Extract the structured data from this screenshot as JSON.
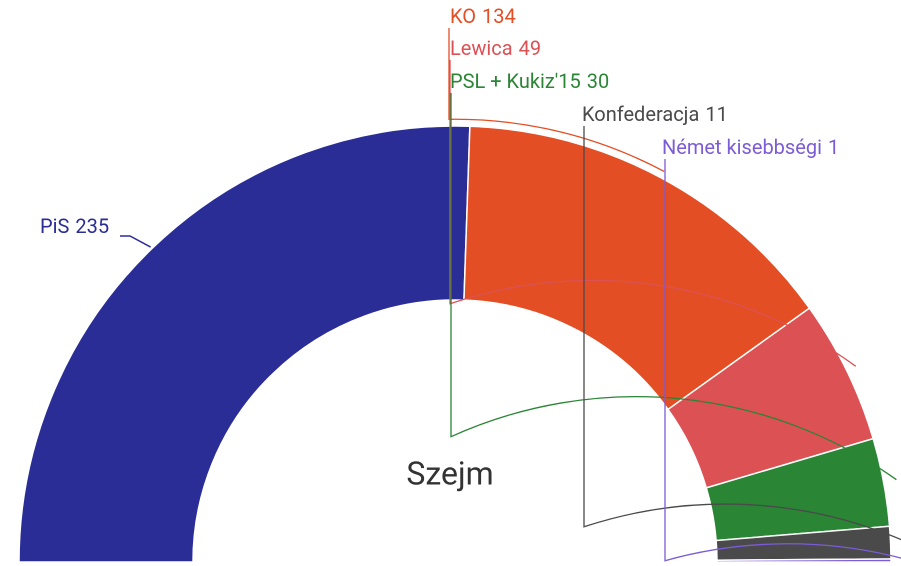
{
  "chart_data": {
    "type": "pie",
    "title": "Szejm",
    "categories": [
      "PiS",
      "KO",
      "Lewica",
      "PSL + Kukiz'15",
      "Konfederacja",
      "Német kisebbségi"
    ],
    "values": [
      235,
      134,
      49,
      30,
      11,
      1
    ],
    "colors": [
      "#2b2d96",
      "#e34e24",
      "#dc5154",
      "#2a8535",
      "#4a4a4a",
      "#7b5cd6"
    ]
  }
}
